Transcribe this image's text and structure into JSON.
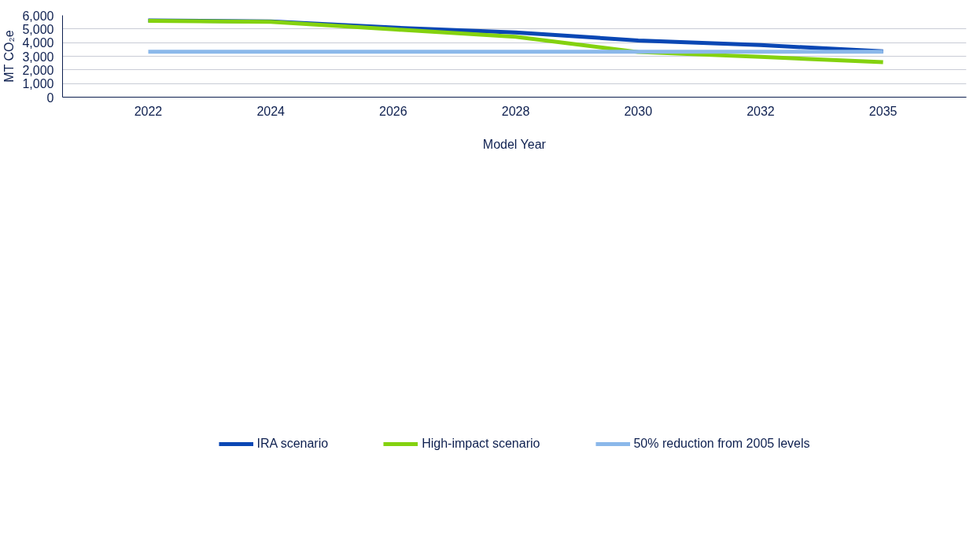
{
  "chart_data": {
    "type": "line",
    "xlabel": "Model Year",
    "ylabel": "MT CO₂e",
    "categories": [
      "2022",
      "2024",
      "2026",
      "2028",
      "2030",
      "2032",
      "2035"
    ],
    "series": [
      {
        "name": "IRA scenario",
        "color": "#0a47b4",
        "values": [
          5630,
          5560,
          5100,
          4750,
          4160,
          3820,
          3360
        ]
      },
      {
        "name": "High-impact scenario",
        "color": "#84d20f",
        "values": [
          5590,
          5530,
          4970,
          4430,
          3310,
          2950,
          2570
        ]
      },
      {
        "name": "50% reduction from 2005 levels",
        "color": "#8bb8ea",
        "values": [
          3330,
          3330,
          3330,
          3330,
          3330,
          3330,
          3330
        ]
      }
    ],
    "ylim": [
      0,
      6000
    ],
    "yticks": [
      {
        "value": 0,
        "label": "0"
      },
      {
        "value": 1000,
        "label": "1,000"
      },
      {
        "value": 2000,
        "label": "2,000"
      },
      {
        "value": 3000,
        "label": "3,000"
      },
      {
        "value": 4000,
        "label": "4,000"
      },
      {
        "value": 5000,
        "label": "5,000"
      },
      {
        "value": 6000,
        "label": "6,000"
      }
    ],
    "grid": "y",
    "legend": "bottom",
    "line_style": "solid",
    "marker": "none"
  }
}
